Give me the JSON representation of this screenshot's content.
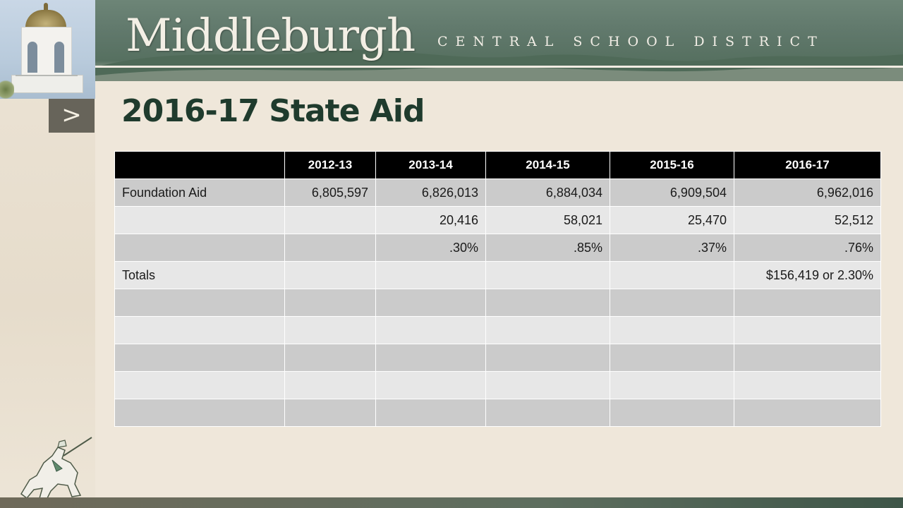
{
  "header": {
    "logo_text": "Middleburgh",
    "district_text": "CENTRAL SCHOOL DISTRICT",
    "accent_color": "#1f3b2d"
  },
  "slide": {
    "arrow_glyph": ">",
    "title": "2016-17 State Aid"
  },
  "table": {
    "headers": [
      "",
      "2012-13",
      "2013-14",
      "2014-15",
      "2015-16",
      "2016-17"
    ],
    "rows": [
      [
        "Foundation Aid",
        "6,805,597",
        "6,826,013",
        "6,884,034",
        "6,909,504",
        "6,962,016"
      ],
      [
        "",
        "",
        "20,416",
        "58,021",
        "25,470",
        "52,512"
      ],
      [
        "",
        "",
        ".30%",
        ".85%",
        ".37%",
        ".76%"
      ],
      [
        "Totals",
        "",
        "",
        "",
        "",
        "$156,419 or 2.30%"
      ],
      [
        "",
        "",
        "",
        "",
        "",
        ""
      ],
      [
        "",
        "",
        "",
        "",
        "",
        ""
      ],
      [
        "",
        "",
        "",
        "",
        "",
        ""
      ],
      [
        "",
        "",
        "",
        "",
        "",
        ""
      ],
      [
        "",
        "",
        "",
        "",
        "",
        ""
      ]
    ]
  },
  "decor": {
    "cupola_icon": "cupola-icon",
    "knight_icon": "knight-logo-icon"
  }
}
